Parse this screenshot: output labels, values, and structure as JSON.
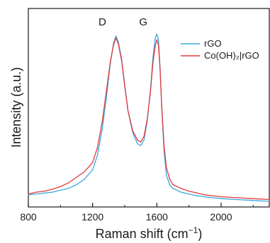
{
  "chart_data": {
    "type": "line",
    "title": "",
    "xlabel": "Raman shift (cm",
    "xlabel_sup": "−1",
    "xlabel_close": ")",
    "ylabel": "Intensity (a.u.)",
    "xlim": [
      800,
      2300
    ],
    "ylim": [
      0,
      1.0
    ],
    "x_ticks": [
      800,
      1200,
      1600,
      2000
    ],
    "x_tick_labels": [
      "800",
      "1200",
      "1600",
      "2000"
    ],
    "y_ticks": [],
    "grid": false,
    "legend_position": "top-right",
    "annotations": [
      {
        "text": "D",
        "x": 1340
      },
      {
        "text": "G",
        "x": 1595
      }
    ],
    "series": [
      {
        "name": "rGO",
        "color": "#3ba8dc",
        "x": [
          800,
          850,
          900,
          950,
          1000,
          1050,
          1100,
          1150,
          1200,
          1230,
          1260,
          1290,
          1310,
          1330,
          1345,
          1360,
          1380,
          1400,
          1420,
          1450,
          1480,
          1500,
          1520,
          1540,
          1560,
          1575,
          1590,
          1600,
          1610,
          1620,
          1630,
          1645,
          1660,
          1680,
          1700,
          1750,
          1800,
          1850,
          1900,
          2000,
          2100,
          2200,
          2300
        ],
        "values": [
          0.065,
          0.07,
          0.075,
          0.08,
          0.09,
          0.1,
          0.12,
          0.15,
          0.2,
          0.28,
          0.42,
          0.62,
          0.77,
          0.88,
          0.92,
          0.89,
          0.8,
          0.66,
          0.52,
          0.4,
          0.34,
          0.33,
          0.36,
          0.46,
          0.63,
          0.8,
          0.91,
          0.93,
          0.9,
          0.75,
          0.54,
          0.3,
          0.17,
          0.12,
          0.1,
          0.08,
          0.07,
          0.06,
          0.055,
          0.045,
          0.04,
          0.035,
          0.03
        ]
      },
      {
        "name": "Co(OH)₂|rGO",
        "color": "#e23a3a",
        "x": [
          800,
          850,
          900,
          950,
          1000,
          1050,
          1100,
          1150,
          1200,
          1230,
          1260,
          1290,
          1310,
          1330,
          1345,
          1360,
          1380,
          1400,
          1420,
          1450,
          1480,
          1500,
          1520,
          1540,
          1560,
          1575,
          1590,
          1600,
          1610,
          1620,
          1630,
          1645,
          1660,
          1680,
          1700,
          1750,
          1800,
          1850,
          1900,
          2000,
          2100,
          2200,
          2300
        ],
        "values": [
          0.07,
          0.08,
          0.085,
          0.095,
          0.11,
          0.13,
          0.16,
          0.19,
          0.24,
          0.32,
          0.46,
          0.65,
          0.78,
          0.87,
          0.91,
          0.88,
          0.79,
          0.65,
          0.52,
          0.41,
          0.36,
          0.35,
          0.38,
          0.47,
          0.62,
          0.77,
          0.87,
          0.9,
          0.87,
          0.74,
          0.55,
          0.33,
          0.21,
          0.15,
          0.12,
          0.1,
          0.085,
          0.075,
          0.065,
          0.055,
          0.05,
          0.045,
          0.04
        ]
      }
    ]
  }
}
